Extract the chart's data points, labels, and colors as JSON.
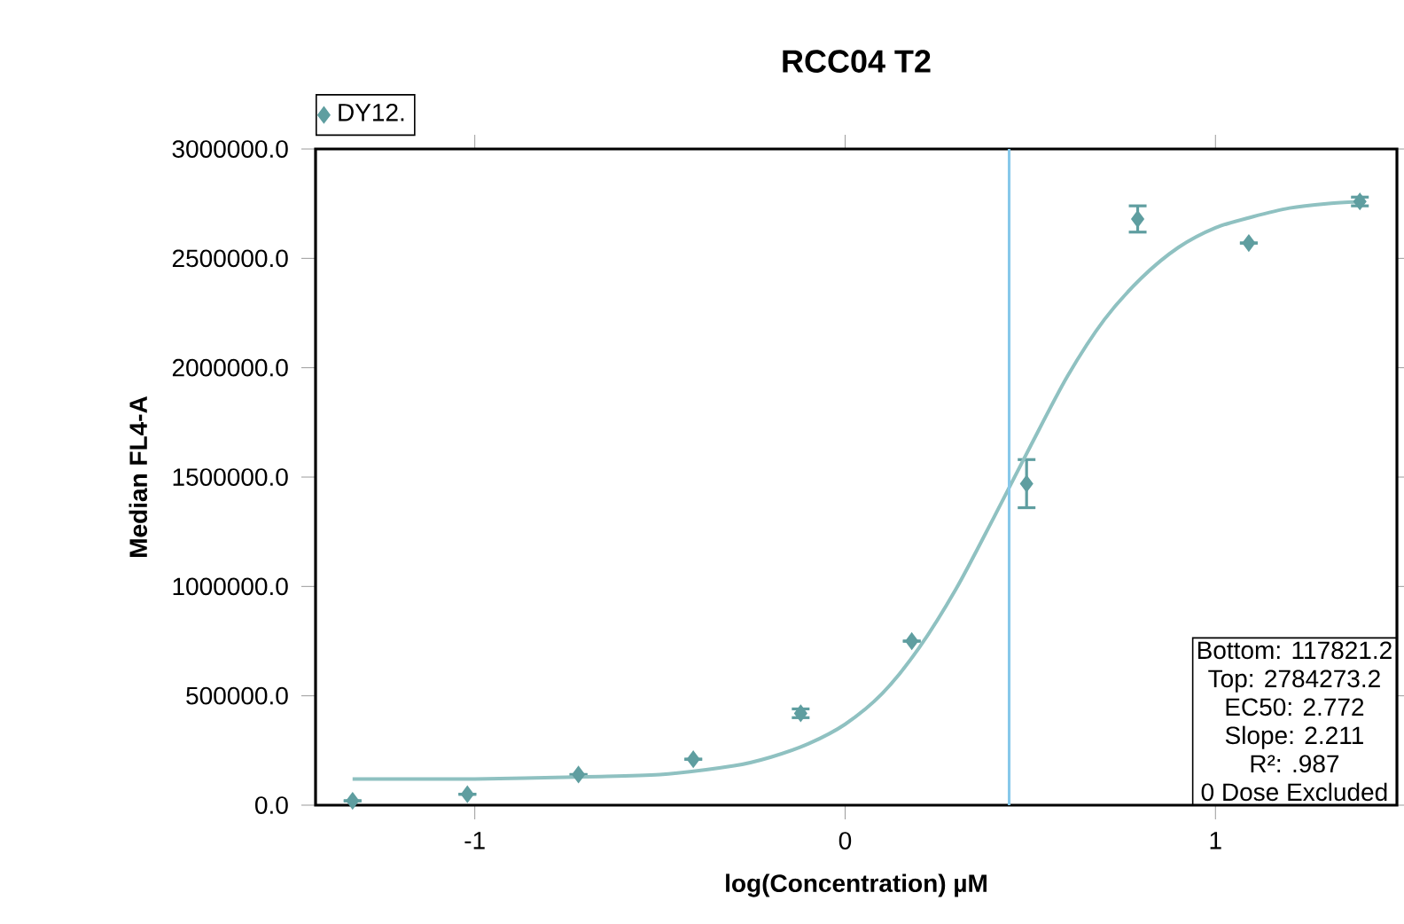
{
  "chart_data": {
    "type": "scatter",
    "title": "RCC04 T2",
    "xlabel": "log(Concentration) µM",
    "ylabel": "Median FL4-A",
    "legend": "top left",
    "marker": "diamond",
    "xlim": [
      -1.43,
      1.49
    ],
    "ylim": [
      0,
      3000000
    ],
    "xticks": [
      -1,
      0,
      1
    ],
    "yticks": [
      {
        "value": 0,
        "label": "0.0"
      },
      {
        "value": 500000,
        "label": "500000.0"
      },
      {
        "value": 1000000,
        "label": "1000000.0"
      },
      {
        "value": 1500000,
        "label": "1500000.0"
      },
      {
        "value": 2000000,
        "label": "2000000.0"
      },
      {
        "value": 2500000,
        "label": "2500000.0"
      },
      {
        "value": 3000000,
        "label": "3000000.0"
      }
    ],
    "series": [
      {
        "name": "DY12.",
        "color": "#5f9ea0",
        "x": [
          -1.33,
          -1.02,
          -0.72,
          -0.41,
          -0.12,
          0.18,
          0.49,
          0.79,
          1.09,
          1.39
        ],
        "values": [
          20000,
          50000,
          140000,
          210000,
          420000,
          750000,
          1470000,
          2680000,
          2570000,
          2760000
        ],
        "errors": [
          null,
          null,
          null,
          null,
          20000,
          null,
          110000,
          60000,
          null,
          20000
        ]
      },
      {
        "type": "line",
        "color": "#8fc1c1",
        "marker": "none",
        "x": [
          -1.33,
          -1.0,
          -0.7,
          -0.5,
          -0.3,
          -0.2,
          -0.1,
          0.0,
          0.1,
          0.2,
          0.3,
          0.4,
          0.5,
          0.6,
          0.7,
          0.8,
          0.9,
          1.0,
          1.1,
          1.2,
          1.3,
          1.4
        ],
        "values": [
          120000,
          120000,
          130000,
          140000,
          180000,
          220000,
          280000,
          370000,
          510000,
          720000,
          990000,
          1310000,
          1640000,
          1960000,
          2220000,
          2410000,
          2550000,
          2640000,
          2690000,
          2730000,
          2750000,
          2760000
        ]
      }
    ],
    "ref_lines": [
      {
        "axis": "x",
        "value": 0.443,
        "color": "#87c8ea"
      }
    ],
    "annotations": [
      "Bottom: 117821.2",
      "Top: 2784273.2",
      "EC50: 2.772",
      "Slope: 2.211",
      "R²: .987",
      "0 Dose Excluded"
    ]
  }
}
